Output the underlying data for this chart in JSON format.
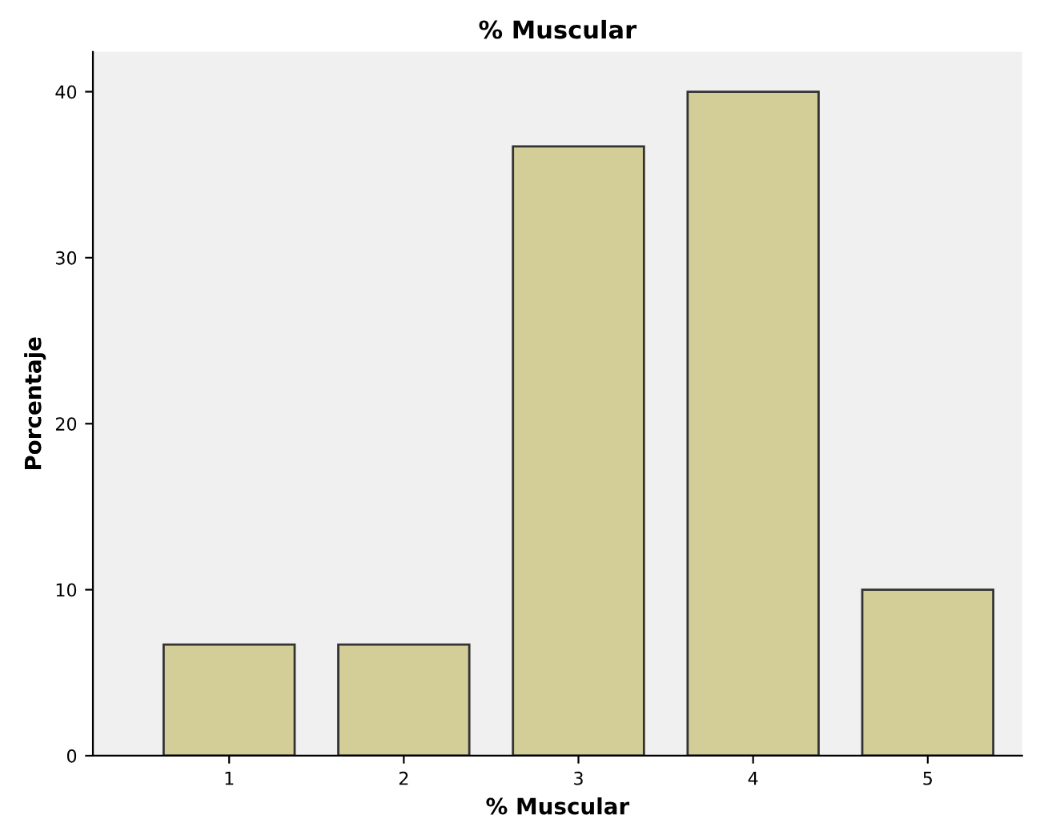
{
  "chart_data": {
    "type": "bar",
    "title": "% Muscular",
    "xlabel": "% Muscular",
    "ylabel": "Porcentaje",
    "categories": [
      "1",
      "2",
      "3",
      "4",
      "5"
    ],
    "values": [
      6.7,
      6.7,
      36.7,
      40,
      10
    ],
    "color": "#d3ce98",
    "ylim": [
      0,
      42.4
    ],
    "yticks": [
      0,
      10,
      20,
      30,
      40
    ],
    "grid": false,
    "legend": false
  }
}
